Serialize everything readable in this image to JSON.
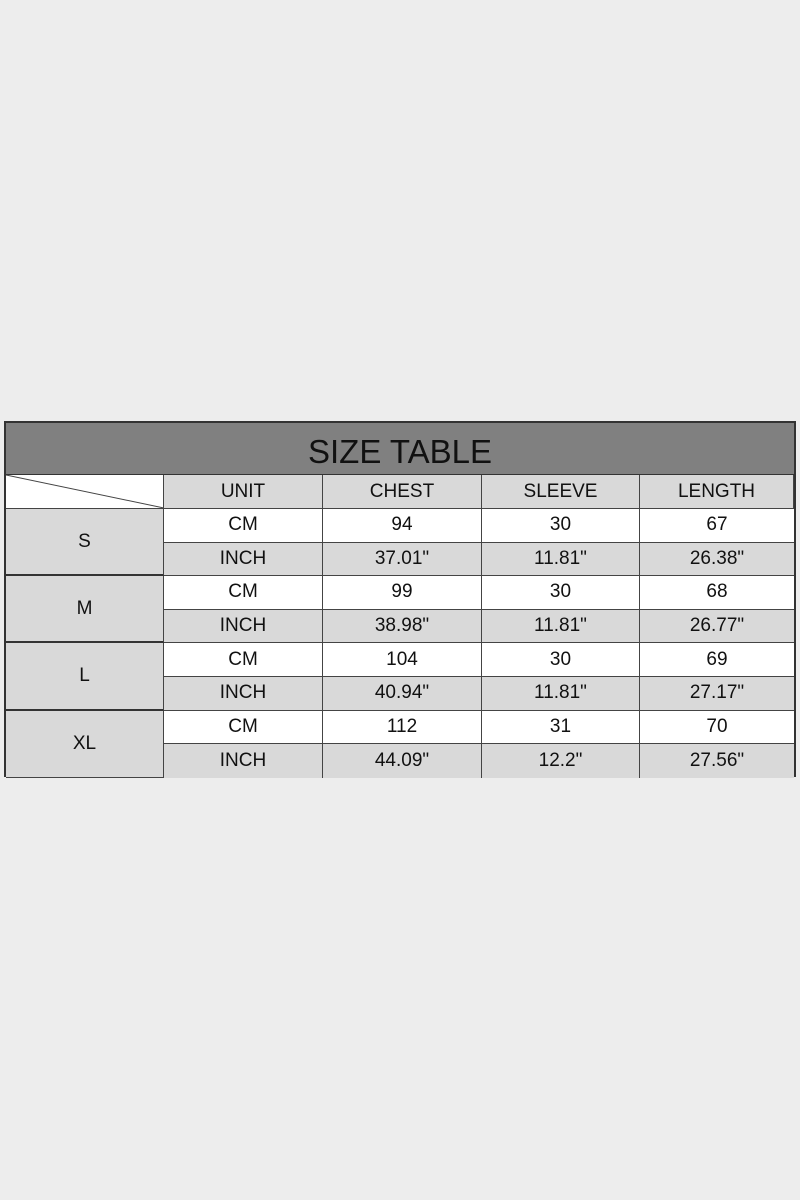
{
  "title": "SIZE TABLE",
  "headers": [
    "UNIT",
    "CHEST",
    "SLEEVE",
    "LENGTH"
  ],
  "sizes": [
    {
      "size": "S",
      "rows": [
        [
          "CM",
          "94",
          "30",
          "67"
        ],
        [
          "INCH",
          "37.01\"",
          "11.81\"",
          "26.38\""
        ]
      ]
    },
    {
      "size": "M",
      "rows": [
        [
          "CM",
          "99",
          "30",
          "68"
        ],
        [
          "INCH",
          "38.98\"",
          "11.81\"",
          "26.77\""
        ]
      ]
    },
    {
      "size": "L",
      "rows": [
        [
          "CM",
          "104",
          "30",
          "69"
        ],
        [
          "INCH",
          "40.94\"",
          "11.81\"",
          "27.17\""
        ]
      ]
    },
    {
      "size": "XL",
      "rows": [
        [
          "CM",
          "112",
          "31",
          "70"
        ],
        [
          "INCH",
          "44.09\"",
          "12.2\"",
          "27.56\""
        ]
      ]
    }
  ],
  "colors": {
    "background": "#ededed",
    "title_bar": "#808080",
    "shaded_cell": "#d9d9d9"
  }
}
